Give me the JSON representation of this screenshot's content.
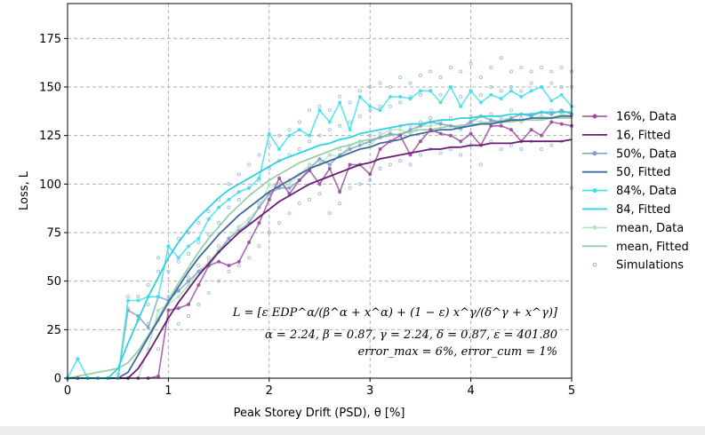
{
  "chart_data": {
    "type": "line",
    "xlabel": "Peak Storey Drift (PSD), θ [%]",
    "ylabel": "Loss, L",
    "xlim": [
      0,
      5
    ],
    "ylim": [
      0,
      193
    ],
    "xticks": [
      0,
      1,
      2,
      3,
      4,
      5
    ],
    "yticks": [
      0,
      25,
      50,
      75,
      100,
      125,
      150,
      175
    ],
    "grid": true,
    "legend_position": "outside-right",
    "fit_params": {
      "alpha": 2.24,
      "beta": 0.87,
      "gamma": 2.24,
      "delta": 0.87,
      "epsilon": 401.8
    },
    "annotations": {
      "formula": "L = [ε EDP^α/(β^α + x^α) + (1 − ε) x^γ/(δ^γ + x^γ)]",
      "params": "α = 2.24, β = 0.87, γ = 2.24, δ = 0.87, ε = 401.80",
      "errors": "error_max = 6%, error_cum = 1%"
    },
    "x": [
      0,
      0.1,
      0.2,
      0.3,
      0.4,
      0.5,
      0.6,
      0.7,
      0.8,
      0.9,
      1.0,
      1.1,
      1.2,
      1.3,
      1.4,
      1.5,
      1.6,
      1.7,
      1.8,
      1.9,
      2.0,
      2.1,
      2.2,
      2.3,
      2.4,
      2.5,
      2.6,
      2.7,
      2.8,
      2.9,
      3.0,
      3.1,
      3.2,
      3.3,
      3.4,
      3.5,
      3.6,
      3.7,
      3.8,
      3.9,
      4.0,
      4.1,
      4.2,
      4.3,
      4.4,
      4.5,
      4.6,
      4.7,
      4.8,
      4.9,
      5.0
    ],
    "series": [
      {
        "name": "16%, Data",
        "color": "#9b4f9e",
        "marker": true,
        "kind": "data",
        "values": [
          0,
          0,
          0,
          0,
          0,
          0,
          0,
          0,
          0,
          1,
          35,
          36,
          38,
          48,
          58,
          60,
          58,
          60,
          70,
          80,
          92,
          103,
          95,
          102,
          107,
          100,
          108,
          96,
          110,
          110,
          105,
          118,
          122,
          125,
          115,
          122,
          128,
          126,
          125,
          122,
          126,
          120,
          130,
          130,
          128,
          122,
          128,
          125,
          132,
          131,
          130
        ]
      },
      {
        "name": "16, Fitted",
        "color": "#6a1b74",
        "marker": false,
        "kind": "fitted",
        "values": [
          0,
          0,
          0,
          0,
          0,
          0,
          0,
          5,
          13,
          22,
          31,
          39,
          46,
          53,
          59,
          65,
          70,
          75,
          79,
          83,
          87,
          91,
          94,
          97,
          100,
          102,
          104,
          106,
          108,
          110,
          111,
          113,
          114,
          115,
          116,
          117,
          118,
          118,
          119,
          119,
          120,
          120,
          121,
          121,
          121,
          122,
          122,
          122,
          122,
          122,
          123
        ]
      },
      {
        "name": "50%, Data",
        "color": "#7fa3c8",
        "marker": true,
        "kind": "data",
        "values": [
          0,
          0,
          0,
          0,
          0,
          0,
          35,
          32,
          26,
          42,
          40,
          45,
          50,
          55,
          58,
          65,
          72,
          76,
          80,
          88,
          95,
          98,
          98,
          102,
          108,
          113,
          110,
          115,
          118,
          120,
          122,
          124,
          126,
          125,
          128,
          130,
          132,
          131,
          130,
          129,
          132,
          135,
          133,
          132,
          134,
          136,
          135,
          137,
          136,
          138,
          136
        ]
      },
      {
        "name": "50, Fitted",
        "color": "#3b6aa0",
        "marker": false,
        "kind": "fitted",
        "values": [
          0,
          0,
          0,
          0,
          0,
          0,
          3,
          12,
          21,
          30,
          39,
          47,
          55,
          62,
          68,
          74,
          79,
          84,
          88,
          92,
          96,
          99,
          102,
          105,
          108,
          110,
          112,
          114,
          116,
          118,
          119,
          121,
          122,
          123,
          125,
          126,
          127,
          128,
          128,
          129,
          130,
          131,
          131,
          132,
          133,
          133,
          134,
          134,
          134,
          135,
          135
        ]
      },
      {
        "name": "84%, Data",
        "color": "#3fe0e8",
        "marker": true,
        "kind": "data",
        "values": [
          0,
          10,
          0,
          0,
          0,
          0,
          40,
          40,
          42,
          42,
          68,
          62,
          68,
          72,
          82,
          88,
          92,
          96,
          98,
          103,
          126,
          118,
          125,
          128,
          125,
          138,
          132,
          142,
          128,
          145,
          140,
          138,
          145,
          145,
          144,
          148,
          148,
          142,
          150,
          140,
          148,
          142,
          146,
          144,
          148,
          145,
          148,
          150,
          143,
          146,
          140
        ]
      },
      {
        "name": "84, Fitted",
        "color": "#2ad4e0",
        "marker": false,
        "kind": "fitted",
        "values": [
          0,
          0,
          0,
          0,
          0,
          5,
          18,
          30,
          42,
          52,
          62,
          70,
          77,
          83,
          88,
          93,
          97,
          100,
          103,
          106,
          109,
          112,
          114,
          116,
          118,
          120,
          121,
          123,
          124,
          126,
          127,
          128,
          129,
          130,
          131,
          131,
          132,
          133,
          133,
          134,
          134,
          135,
          135,
          135,
          136,
          136,
          136,
          137,
          137,
          137,
          137
        ]
      },
      {
        "name": "mean, Data",
        "color": "#b8e3c0",
        "marker": true,
        "kind": "data",
        "values": [
          0,
          0,
          0,
          0,
          0,
          0,
          0,
          0,
          15,
          35,
          38,
          42,
          48,
          55,
          60,
          66,
          72,
          78,
          82,
          88,
          100,
          98,
          100,
          105,
          110,
          110,
          115,
          114,
          120,
          122,
          120,
          125,
          128,
          128,
          126,
          130,
          130,
          131,
          130,
          128,
          133,
          132,
          132,
          133,
          134,
          132,
          134,
          135,
          134,
          136,
          135
        ]
      },
      {
        "name": "mean, Fitted",
        "color": "#98d0a8",
        "marker": false,
        "kind": "fitted",
        "values": [
          0,
          1,
          2,
          3,
          4,
          5,
          8,
          14,
          22,
          31,
          40,
          49,
          57,
          65,
          72,
          78,
          84,
          89,
          94,
          98,
          102,
          105,
          108,
          111,
          113,
          115,
          117,
          119,
          120,
          122,
          123,
          124,
          125,
          126,
          127,
          128,
          128,
          129,
          130,
          130,
          131,
          131,
          132,
          132,
          132,
          133,
          133,
          133,
          134,
          134,
          134
        ]
      }
    ],
    "simulations": {
      "name": "Simulations",
      "color": "#8faed0",
      "points": [
        [
          0.4,
          0
        ],
        [
          0.5,
          2
        ],
        [
          0.6,
          36
        ],
        [
          0.6,
          42
        ],
        [
          0.7,
          30
        ],
        [
          0.7,
          42
        ],
        [
          0.8,
          28
        ],
        [
          0.8,
          38
        ],
        [
          0.8,
          48
        ],
        [
          0.9,
          15
        ],
        [
          0.9,
          30
        ],
        [
          0.9,
          55
        ],
        [
          0.9,
          62
        ],
        [
          1.0,
          30
        ],
        [
          1.0,
          42
        ],
        [
          1.0,
          55
        ],
        [
          1.0,
          68
        ],
        [
          1.1,
          28
        ],
        [
          1.1,
          45
        ],
        [
          1.1,
          60
        ],
        [
          1.1,
          72
        ],
        [
          1.2,
          32
        ],
        [
          1.2,
          52
        ],
        [
          1.2,
          64
        ],
        [
          1.2,
          75
        ],
        [
          1.3,
          38
        ],
        [
          1.3,
          58
        ],
        [
          1.3,
          70
        ],
        [
          1.3,
          80
        ],
        [
          1.4,
          44
        ],
        [
          1.4,
          62
        ],
        [
          1.4,
          74
        ],
        [
          1.4,
          86
        ],
        [
          1.5,
          50
        ],
        [
          1.5,
          68
        ],
        [
          1.5,
          80
        ],
        [
          1.5,
          92
        ],
        [
          1.6,
          55
        ],
        [
          1.6,
          72
        ],
        [
          1.6,
          88
        ],
        [
          1.6,
          100
        ],
        [
          1.7,
          58
        ],
        [
          1.7,
          78
        ],
        [
          1.7,
          92
        ],
        [
          1.7,
          105
        ],
        [
          1.8,
          62
        ],
        [
          1.8,
          82
        ],
        [
          1.8,
          98
        ],
        [
          1.8,
          110
        ],
        [
          1.9,
          68
        ],
        [
          1.9,
          90
        ],
        [
          1.9,
          102
        ],
        [
          1.9,
          115
        ],
        [
          2.0,
          75
        ],
        [
          2.0,
          95
        ],
        [
          2.0,
          108
        ],
        [
          2.0,
          120
        ],
        [
          2.1,
          80
        ],
        [
          2.1,
          100
        ],
        [
          2.1,
          112
        ],
        [
          2.1,
          125
        ],
        [
          2.2,
          85
        ],
        [
          2.2,
          102
        ],
        [
          2.2,
          115
        ],
        [
          2.2,
          128
        ],
        [
          2.3,
          90
        ],
        [
          2.3,
          105
        ],
        [
          2.3,
          118
        ],
        [
          2.3,
          132
        ],
        [
          2.4,
          92
        ],
        [
          2.4,
          110
        ],
        [
          2.4,
          122
        ],
        [
          2.4,
          138
        ],
        [
          2.5,
          95
        ],
        [
          2.5,
          112
        ],
        [
          2.5,
          125
        ],
        [
          2.5,
          140
        ],
        [
          2.6,
          85
        ],
        [
          2.6,
          115
        ],
        [
          2.6,
          128
        ],
        [
          2.6,
          138
        ],
        [
          2.7,
          90
        ],
        [
          2.7,
          118
        ],
        [
          2.7,
          130
        ],
        [
          2.7,
          145
        ],
        [
          2.8,
          98
        ],
        [
          2.8,
          120
        ],
        [
          2.8,
          132
        ],
        [
          2.8,
          142
        ],
        [
          2.9,
          100
        ],
        [
          2.9,
          122
        ],
        [
          2.9,
          135
        ],
        [
          2.9,
          148
        ],
        [
          3.0,
          102
        ],
        [
          3.0,
          125
        ],
        [
          3.0,
          138
        ],
        [
          3.0,
          150
        ],
        [
          3.1,
          108
        ],
        [
          3.1,
          126
        ],
        [
          3.1,
          140
        ],
        [
          3.1,
          152
        ],
        [
          3.2,
          110
        ],
        [
          3.2,
          128
        ],
        [
          3.2,
          140
        ],
        [
          3.2,
          150
        ],
        [
          3.3,
          112
        ],
        [
          3.3,
          130
        ],
        [
          3.3,
          142
        ],
        [
          3.3,
          155
        ],
        [
          3.4,
          110
        ],
        [
          3.4,
          130
        ],
        [
          3.4,
          145
        ],
        [
          3.4,
          152
        ],
        [
          3.5,
          115
        ],
        [
          3.5,
          132
        ],
        [
          3.5,
          146
        ],
        [
          3.5,
          156
        ],
        [
          3.6,
          118
        ],
        [
          3.6,
          134
        ],
        [
          3.6,
          148
        ],
        [
          3.6,
          158
        ],
        [
          3.7,
          116
        ],
        [
          3.7,
          132
        ],
        [
          3.7,
          146
        ],
        [
          3.7,
          155
        ],
        [
          3.8,
          118
        ],
        [
          3.8,
          134
        ],
        [
          3.8,
          150
        ],
        [
          3.8,
          160
        ],
        [
          3.9,
          115
        ],
        [
          3.9,
          130
        ],
        [
          3.9,
          145
        ],
        [
          3.9,
          158
        ],
        [
          4.0,
          120
        ],
        [
          4.0,
          135
        ],
        [
          4.0,
          148
        ],
        [
          4.0,
          162
        ],
        [
          4.1,
          110
        ],
        [
          4.1,
          132
        ],
        [
          4.1,
          146
        ],
        [
          4.1,
          155
        ],
        [
          4.2,
          122
        ],
        [
          4.2,
          136
        ],
        [
          4.2,
          150
        ],
        [
          4.2,
          160
        ],
        [
          4.3,
          118
        ],
        [
          4.3,
          134
        ],
        [
          4.3,
          148
        ],
        [
          4.3,
          165
        ],
        [
          4.4,
          120
        ],
        [
          4.4,
          138
        ],
        [
          4.4,
          150
        ],
        [
          4.4,
          158
        ],
        [
          4.5,
          118
        ],
        [
          4.5,
          134
        ],
        [
          4.5,
          148
        ],
        [
          4.5,
          160
        ],
        [
          4.6,
          122
        ],
        [
          4.6,
          136
        ],
        [
          4.6,
          152
        ],
        [
          4.6,
          158
        ],
        [
          4.7,
          118
        ],
        [
          4.7,
          135
        ],
        [
          4.7,
          150
        ],
        [
          4.7,
          160
        ],
        [
          4.8,
          120
        ],
        [
          4.8,
          138
        ],
        [
          4.8,
          152
        ],
        [
          4.8,
          158
        ],
        [
          4.9,
          122
        ],
        [
          4.9,
          136
        ],
        [
          4.9,
          150
        ],
        [
          4.9,
          160
        ],
        [
          5.0,
          98
        ],
        [
          5.0,
          135
        ],
        [
          5.0,
          150
        ],
        [
          5.0,
          158
        ]
      ]
    }
  }
}
